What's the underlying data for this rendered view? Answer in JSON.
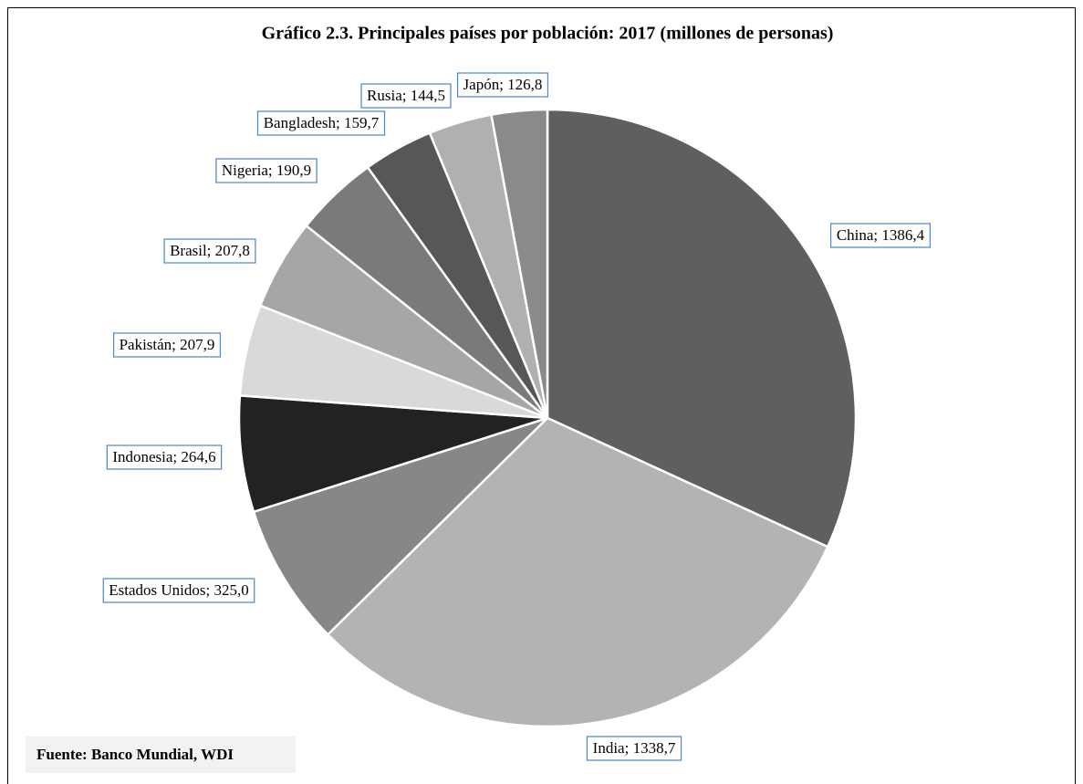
{
  "chart_data": {
    "type": "pie",
    "title": "Gráfico 2.3. Principales países por población: 2017 (millones de personas)",
    "categories": [
      "China",
      "India",
      "Estados Unidos",
      "Indonesia",
      "Pakistán",
      "Brasil",
      "Nigeria",
      "Bangladesh",
      "Rusia",
      "Japón"
    ],
    "values": [
      1386.4,
      1338.7,
      325.0,
      264.6,
      207.9,
      207.8,
      190.9,
      159.7,
      144.5,
      126.8
    ],
    "value_labels": [
      "China; 1386,4",
      "India; 1338,7",
      "Estados Unidos; 325,0",
      "Indonesia; 264,6",
      "Pakistán; 207,9",
      "Brasil; 207,8",
      "Nigeria; 190,9",
      "Bangladesh; 159,7",
      "Rusia; 144,5",
      "Japón; 126,8"
    ],
    "colors": [
      "#5f5f5f",
      "#b3b3b3",
      "#878787",
      "#222222",
      "#d9d9d9",
      "#a6a6a6",
      "#7a7a7a",
      "#575757",
      "#b0b0b0",
      "#8a8a8a"
    ],
    "source": "Fuente: Banco Mundial, WDI"
  }
}
